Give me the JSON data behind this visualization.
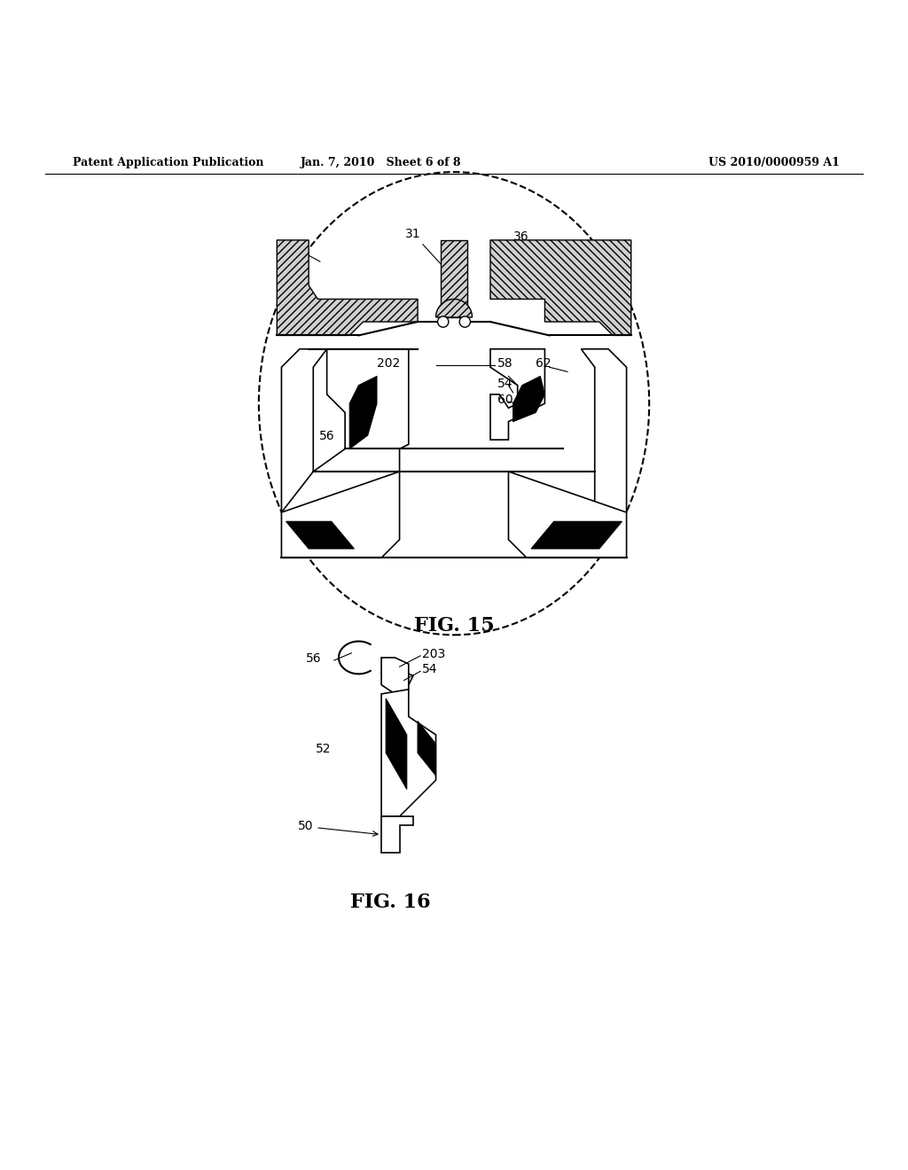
{
  "header_left": "Patent Application Publication",
  "header_mid": "Jan. 7, 2010   Sheet 6 of 8",
  "header_right": "US 2010/0000959 A1",
  "fig15_label": "FIG. 15",
  "fig16_label": "FIG. 16",
  "background_color": "#ffffff",
  "line_color": "#000000"
}
